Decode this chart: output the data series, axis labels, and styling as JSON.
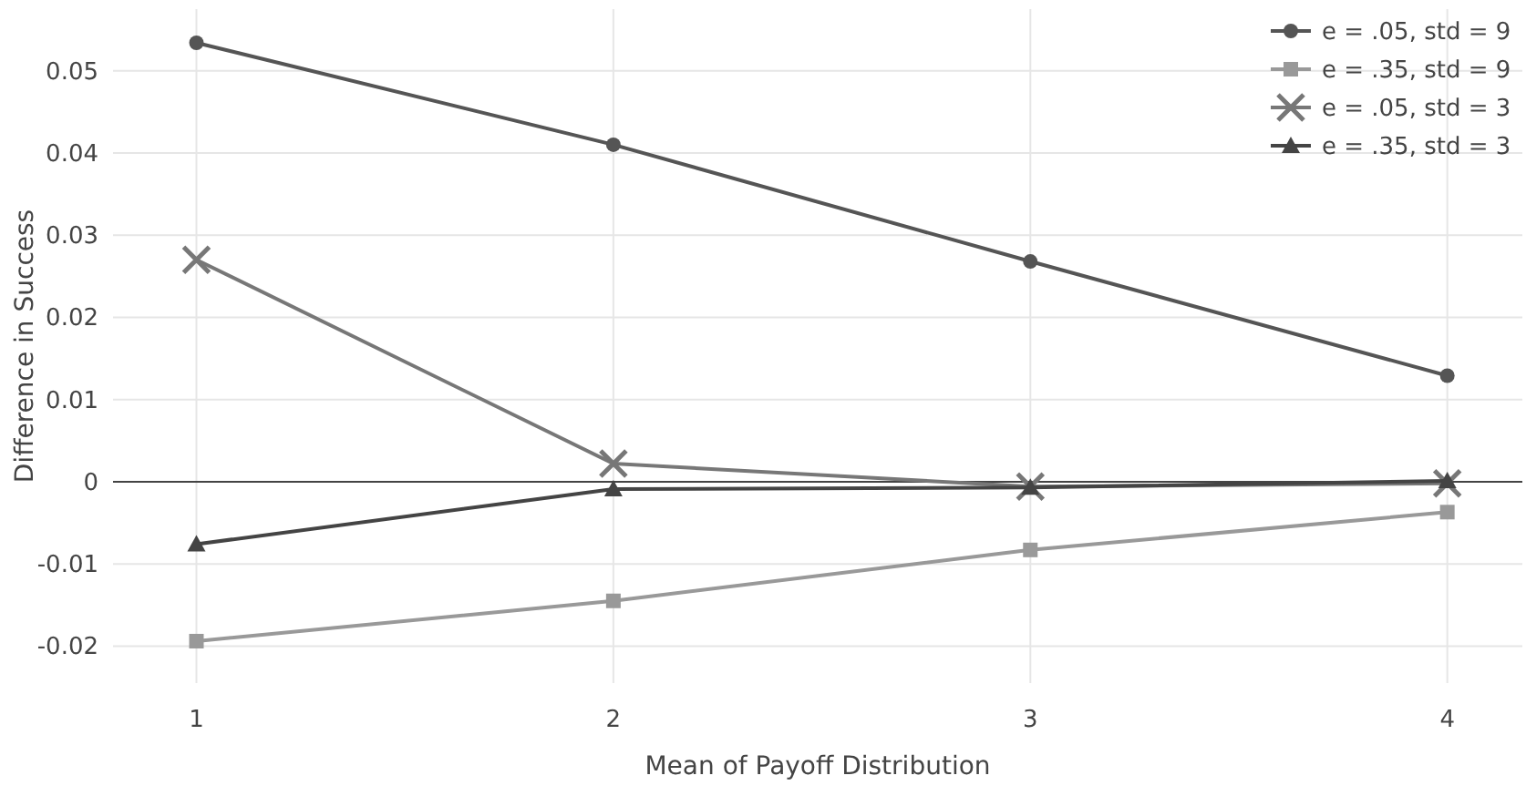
{
  "chart_data": {
    "type": "line",
    "xlabel": "Mean of Payoff Distribution",
    "ylabel": "Difference in Success",
    "x": [
      1,
      2,
      3,
      4
    ],
    "series": [
      {
        "name": "e = .05, std = 9",
        "color": "#555555",
        "marker": "circle",
        "values": [
          0.0534,
          0.041,
          0.0268,
          0.0129
        ]
      },
      {
        "name": "e = .35, std = 9",
        "color": "#999999",
        "marker": "square",
        "values": [
          -0.0194,
          -0.0145,
          -0.0083,
          -0.0037
        ]
      },
      {
        "name": "e = .05, std = 3",
        "color": "#777777",
        "marker": "cross",
        "values": [
          0.027,
          0.0022,
          -0.0006,
          -0.0002
        ]
      },
      {
        "name": "e = .35, std = 3",
        "color": "#444444",
        "marker": "triangle",
        "values": [
          -0.0076,
          -0.0009,
          -0.0007,
          0.0001
        ]
      }
    ],
    "xlim": [
      0.8,
      4.18
    ],
    "xticks": [
      1,
      2,
      3,
      4
    ],
    "ylim": [
      -0.0245,
      0.0575
    ],
    "yticks": [
      -0.02,
      -0.01,
      0,
      0.01,
      0.02,
      0.03,
      0.04,
      0.05
    ],
    "ref_lines": [
      {
        "axis": "y",
        "value": 0,
        "color": "#444444"
      }
    ],
    "grid": true,
    "legend": "top right",
    "line_style": "solid"
  }
}
